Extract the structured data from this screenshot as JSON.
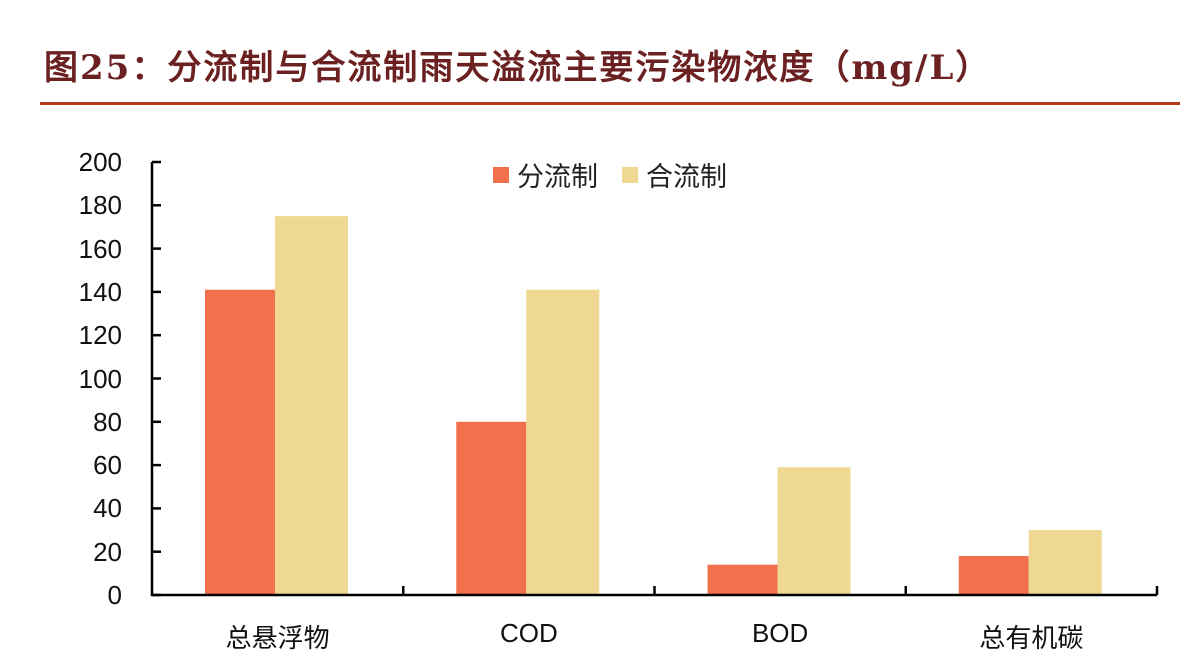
{
  "title": "图25：分流制与合流制雨天溢流主要污染物浓度（mg/L）",
  "colors": {
    "title": "#6b2121",
    "rule": "#b43a1c",
    "separate": "#f0714c",
    "combined": "#efd992"
  },
  "legend": [
    {
      "label": "分流制",
      "color": "#f0714c"
    },
    {
      "label": "合流制",
      "color": "#efd992"
    }
  ],
  "chart_data": {
    "type": "bar",
    "title": "分流制与合流制雨天溢流主要污染物浓度（mg/L）",
    "xlabel": "",
    "ylabel": "",
    "categories": [
      "总悬浮物",
      "COD",
      "BOD",
      "总有机碳"
    ],
    "series": [
      {
        "name": "分流制",
        "values": [
          141,
          80,
          14,
          18
        ]
      },
      {
        "name": "合流制",
        "values": [
          175,
          141,
          59,
          30
        ]
      }
    ],
    "ylim": [
      0,
      200
    ],
    "yticks": [
      0,
      20,
      40,
      60,
      80,
      100,
      120,
      140,
      160,
      180,
      200
    ],
    "grid": false,
    "legend_position": "top"
  }
}
